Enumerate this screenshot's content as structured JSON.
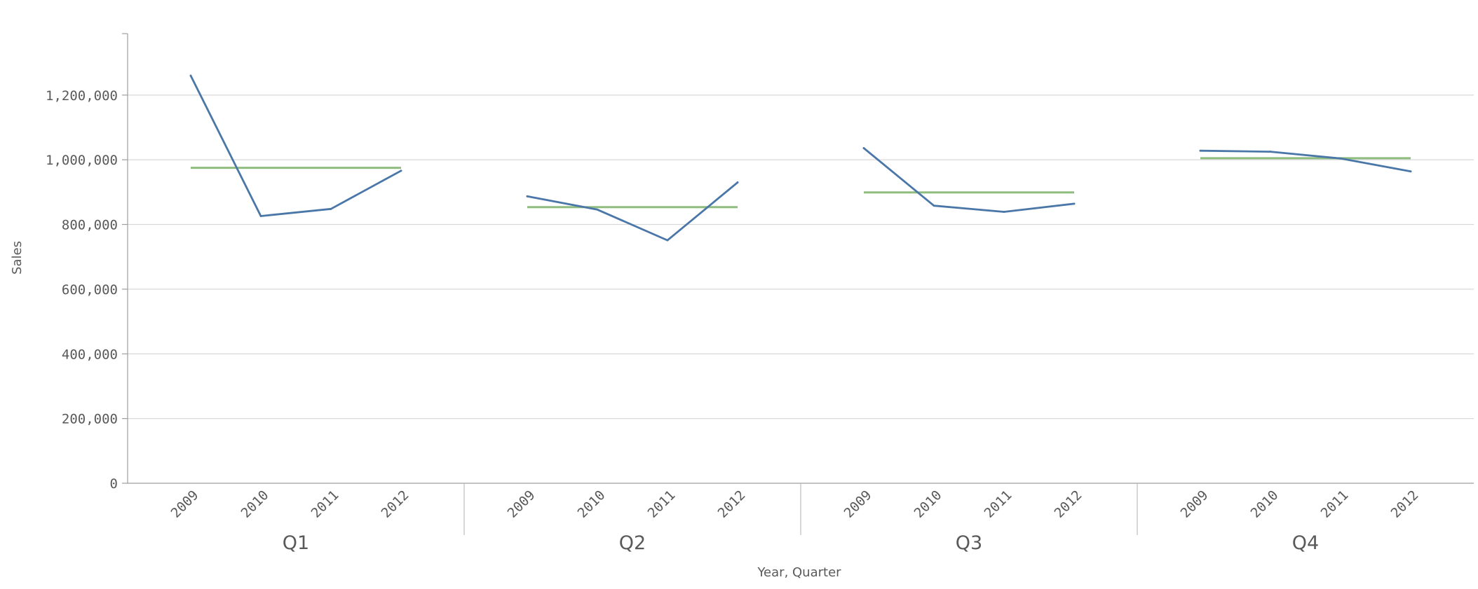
{
  "chart_data": {
    "type": "line",
    "xlabel": "Year, Quarter",
    "ylabel": "Sales",
    "ylim": [
      0,
      1390000
    ],
    "y_ticks": [
      0,
      200000,
      400000,
      600000,
      800000,
      1000000,
      1200000
    ],
    "y_tick_labels": [
      "0",
      "200,000",
      "400,000",
      "600,000",
      "800,000",
      "1,000,000",
      "1,200,000"
    ],
    "grid": true,
    "legend": "none",
    "groups": [
      {
        "label": "Q1",
        "years": [
          "2009",
          "2010",
          "2011",
          "2012"
        ],
        "sales": [
          1260000,
          826000,
          848000,
          966000
        ],
        "average": 975000
      },
      {
        "label": "Q2",
        "years": [
          "2009",
          "2010",
          "2011",
          "2012"
        ],
        "sales": [
          887000,
          846000,
          751000,
          930000
        ],
        "average": 853500
      },
      {
        "label": "Q3",
        "years": [
          "2009",
          "2010",
          "2011",
          "2012"
        ],
        "sales": [
          1036000,
          858000,
          839000,
          864000
        ],
        "average": 899000
      },
      {
        "label": "Q4",
        "years": [
          "2009",
          "2010",
          "2011",
          "2012"
        ],
        "sales": [
          1028000,
          1025000,
          1004000,
          964000
        ],
        "average": 1005000
      }
    ],
    "colors": {
      "sales_line": "#4a77a8",
      "average_line": "#8fbd7f"
    }
  }
}
